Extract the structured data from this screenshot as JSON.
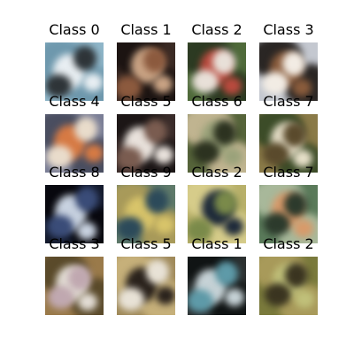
{
  "grid": {
    "rows": 4,
    "cols": 4,
    "tiles": [
      {
        "label": "Class 0",
        "palette": {
          "base": "#8fb6c9",
          "a": "#e8eef2",
          "b": "#2e3438",
          "c": "#6e98ad"
        }
      },
      {
        "label": "Class 1",
        "palette": {
          "base": "#3a2a24",
          "a": "#c9a384",
          "b": "#8c5a3e",
          "c": "#1c1412"
        }
      },
      {
        "label": "Class 2",
        "palette": {
          "base": "#4f6a3a",
          "a": "#b94a3e",
          "b": "#e8e0d8",
          "c": "#2c3a22"
        }
      },
      {
        "label": "Class 3",
        "palette": {
          "base": "#c4c8d0",
          "a": "#8a5c3c",
          "b": "#f2ece4",
          "c": "#2a2624"
        }
      },
      {
        "label": "Class 4",
        "palette": {
          "base": "#7a7e96",
          "a": "#d67a44",
          "b": "#e9dccb",
          "c": "#4a4e60"
        }
      },
      {
        "label": "Class 5",
        "palette": {
          "base": "#3a2c2a",
          "a": "#e9e2dc",
          "b": "#7a5c50",
          "c": "#1c1616"
        }
      },
      {
        "label": "Class 6",
        "palette": {
          "base": "#56643a",
          "a": "#9aa27a",
          "b": "#2c3220",
          "c": "#c0b490"
        }
      },
      {
        "label": "Class 7",
        "palette": {
          "base": "#8a7a48",
          "a": "#e6dfc8",
          "b": "#5a4a2c",
          "c": "#3c4c28"
        }
      },
      {
        "label": "Class 8",
        "palette": {
          "base": "#141a2c",
          "a": "#c8d2e0",
          "b": "#3a4c78",
          "c": "#08080e"
        }
      },
      {
        "label": "Class 9",
        "palette": {
          "base": "#5f7a6a",
          "a": "#d8c46a",
          "b": "#2c4a5a",
          "c": "#a89a5a"
        }
      },
      {
        "label": "Class 2",
        "palette": {
          "base": "#b8b06a",
          "a": "#1e2a3a",
          "b": "#7a8a4a",
          "c": "#d6cc8a"
        }
      },
      {
        "label": "Class 7",
        "palette": {
          "base": "#5a7a5a",
          "a": "#d89a6a",
          "b": "#2c3a2c",
          "c": "#a8b89a"
        }
      },
      {
        "label": "Class 3",
        "palette": {
          "base": "#9a7a4a",
          "a": "#e2dcd4",
          "b": "#c0a8b0",
          "c": "#5a4a2a"
        }
      },
      {
        "label": "Class 5",
        "palette": {
          "base": "#a08a5a",
          "a": "#2a221c",
          "b": "#e8e2d6",
          "c": "#c6b07a"
        }
      },
      {
        "label": "Class 1",
        "palette": {
          "base": "#2c3030",
          "a": "#c6d2d6",
          "b": "#5e9aa8",
          "c": "#101414"
        }
      },
      {
        "label": "Class 2",
        "palette": {
          "base": "#7a7a3c",
          "a": "#c0c07a",
          "b": "#3a3420",
          "c": "#a89a5a"
        }
      }
    ]
  }
}
